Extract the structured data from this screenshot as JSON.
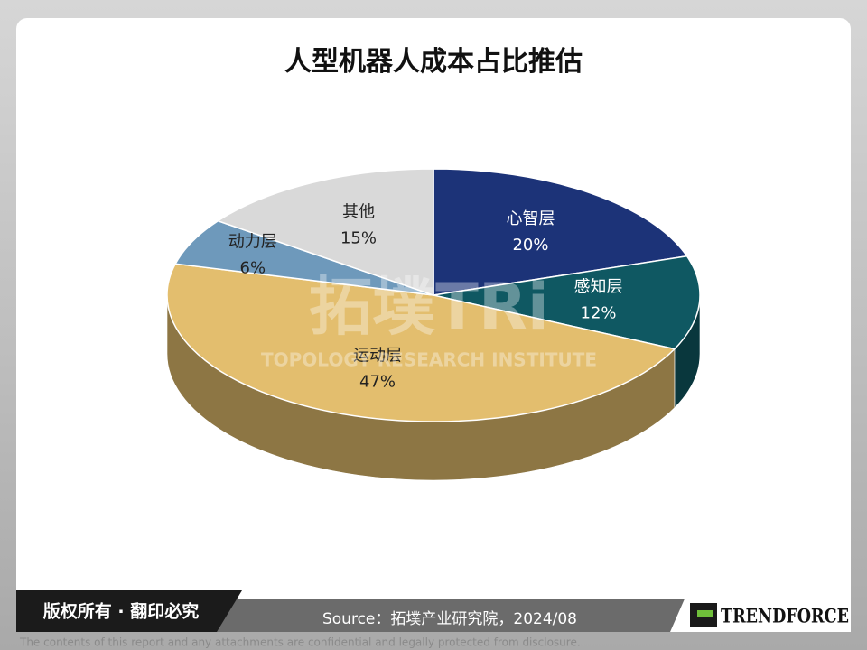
{
  "chart_data": {
    "type": "pie",
    "title": "人型机器人成本占比推估",
    "categories": [
      "心智层",
      "感知层",
      "运动层",
      "动力层",
      "其他"
    ],
    "values": [
      20,
      12,
      47,
      6,
      15
    ],
    "value_labels": [
      "20%",
      "12%",
      "47%",
      "6%",
      "15%"
    ],
    "colors": [
      "#1c3378",
      "#0f5862",
      "#e3be6e",
      "#6e99bb",
      "#d9d9d9"
    ]
  },
  "watermark": {
    "logo": "拓墣TRi",
    "name": "TOPOLOGY RESEARCH INSTITUTE"
  },
  "footer": {
    "copyright": "版权所有 · 翻印必究",
    "source": "Source：拓墣产业研究院，2024/08",
    "logo": "TRENDFORCE",
    "disclaimer": "The contents of this report and any attachments are confidential and legally protected from disclosure."
  }
}
